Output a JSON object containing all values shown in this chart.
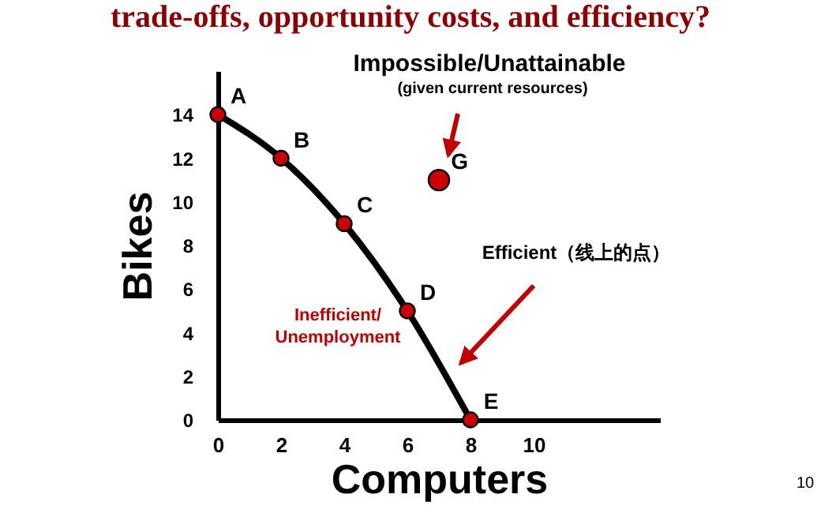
{
  "chart_data": {
    "type": "line",
    "title": "trade-offs, opportunity costs, and efficiency?",
    "xlabel": "Computers",
    "ylabel": "Bikes",
    "x": [
      0,
      2,
      4,
      6,
      8
    ],
    "series": [
      {
        "color": "#000000",
        "colors": [
          "#cc0000",
          "#cc0000",
          "#cc0000",
          "#cc0000",
          "#cc0000"
        ],
        "values": [
          14,
          12,
          9,
          5,
          0
        ]
      },
      {
        "type": "scatter",
        "color": "#cc0000",
        "x": [
          7
        ],
        "values": [
          11
        ]
      }
    ],
    "xlim": [
      0,
      14
    ],
    "ylim": [
      0,
      16
    ],
    "xticks": [
      0,
      2,
      4,
      6,
      8,
      10
    ],
    "yticks": [
      0,
      2,
      4,
      6,
      8,
      10,
      12,
      14
    ],
    "marker": "circle",
    "grid": false,
    "annotations": [
      {
        "text": "A",
        "x": 0,
        "y": 14
      },
      {
        "text": "B",
        "x": 2,
        "y": 12
      },
      {
        "text": "C",
        "x": 4,
        "y": 9
      },
      {
        "text": "D",
        "x": 6,
        "y": 5
      },
      {
        "text": "E",
        "x": 8,
        "y": 0
      },
      {
        "text": "G",
        "x": 7,
        "y": 11
      },
      "Impossible/Unattainable",
      "(given current resources)",
      "Efficient（线上的点）",
      "Inefficient/\nUnemployment",
      "10"
    ]
  }
}
